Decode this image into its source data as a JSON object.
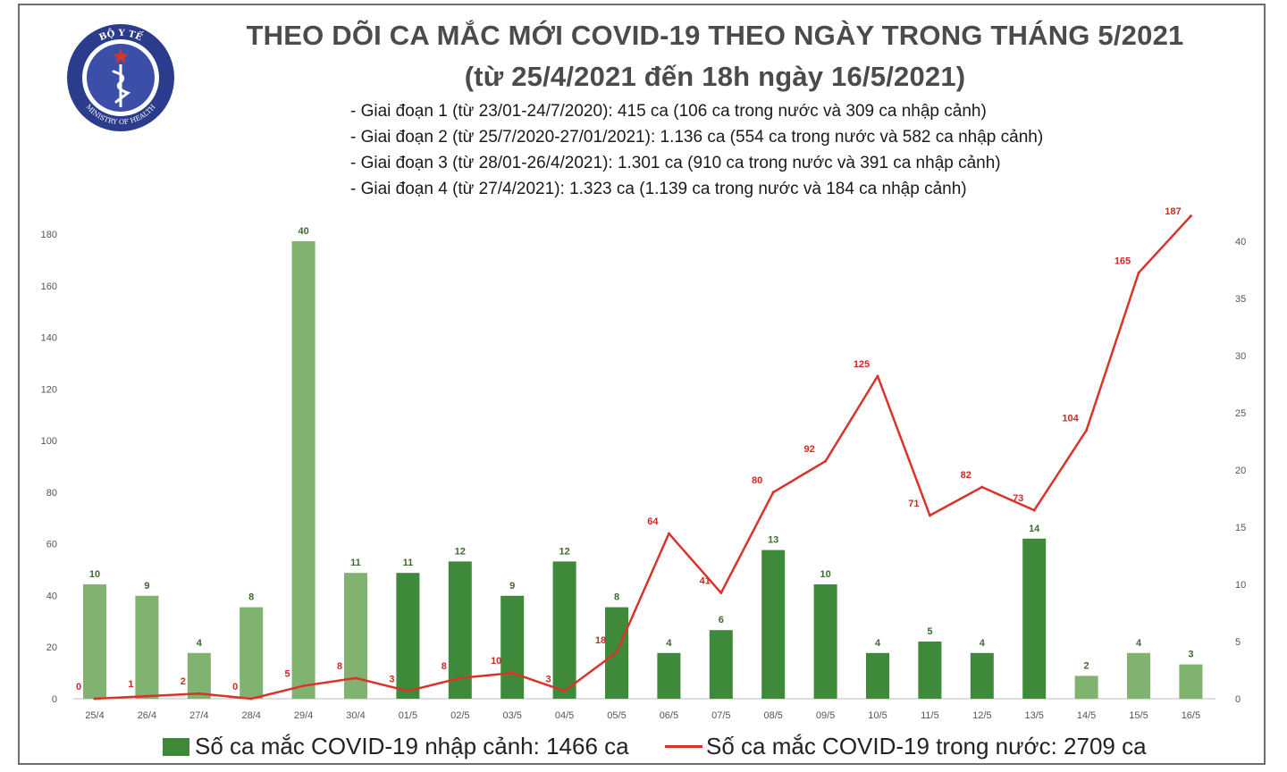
{
  "header": {
    "title": "THEO DÕI CA MẮC MỚI COVID-19 THEO NGÀY TRONG THÁNG 5/2021",
    "subtitle": "(từ 25/4/2021 đến 18h ngày 16/5/2021)",
    "phases": [
      "- Giai đoạn 1 (từ 23/01-24/7/2020): 415 ca (106 ca trong nước và 309 ca nhập cảnh)",
      "- Giai đoạn 2 (từ 25/7/2020-27/01/2021): 1.136 ca (554 ca trong nước và 582 ca nhập cảnh)",
      "- Giai đoạn 3 (từ 28/01-26/4/2021): 1.301 ca (910 ca trong nước và 391 ca nhập cảnh)",
      "- Giai đoạn 4 (từ 27/4/2021): 1.323 ca (1.139 ca trong nước và 184 ca nhập cảnh)"
    ]
  },
  "logo": {
    "text_top": "BỘ Y TẾ",
    "text_bottom": "MINISTRY OF HEALTH",
    "colors": {
      "outer": "#2c3c8c",
      "inner": "#ffffff",
      "star": "#d9342b"
    }
  },
  "legend": {
    "bar_label": "Số ca mắc COVID-19 nhập cảnh: 1466 ca",
    "line_label": "Số ca mắc COVID-19 trong nước: 2709 ca"
  },
  "colors": {
    "bar_light": "#7fb36f",
    "bar_dark": "#3f8a3a",
    "line": "#d9342b",
    "label_bar": "#3f6a30",
    "label_line": "#cc2a22",
    "axis_text": "#555555"
  },
  "chart_data": {
    "type": "bar+line",
    "categories": [
      "25/4",
      "26/4",
      "27/4",
      "28/4",
      "29/4",
      "30/4",
      "01/5",
      "02/5",
      "03/5",
      "04/5",
      "05/5",
      "06/5",
      "07/5",
      "08/5",
      "09/5",
      "10/5",
      "11/5",
      "12/5",
      "13/5",
      "14/5",
      "15/5",
      "16/5"
    ],
    "left_axis": {
      "ylim": [
        0,
        180
      ],
      "ticks": [
        0,
        20,
        40,
        60,
        80,
        100,
        120,
        140,
        160,
        180
      ]
    },
    "right_axis": {
      "ylim": [
        0,
        40
      ],
      "ticks": [
        0,
        5,
        10,
        15,
        20,
        25,
        30,
        35,
        40
      ]
    },
    "series": [
      {
        "name": "Số ca mắc COVID-19 nhập cảnh",
        "kind": "bar",
        "axis": "right",
        "values": [
          10,
          9,
          4,
          8,
          40,
          11,
          11,
          12,
          9,
          12,
          8,
          4,
          6,
          13,
          10,
          4,
          5,
          4,
          14,
          2,
          4,
          3
        ],
        "data_labels": [
          "10",
          "9",
          "4",
          "8",
          "40",
          "11",
          "11",
          "12",
          "9",
          "12",
          "8",
          "4",
          "6",
          "13",
          "10",
          "4",
          "5",
          "4",
          "14",
          "2",
          "4",
          "3"
        ]
      },
      {
        "name": "Số ca mắc COVID-19 trong nước",
        "kind": "line",
        "axis": "left",
        "values": [
          0,
          1,
          2,
          0,
          5,
          8,
          3,
          8,
          10,
          3,
          18,
          64,
          41,
          80,
          92,
          125,
          71,
          82,
          73,
          104,
          165,
          187
        ],
        "data_labels": [
          "0",
          "1",
          "2",
          "0",
          "5",
          "8",
          "3",
          "8",
          "10",
          "3",
          "18",
          "64",
          "41",
          "80",
          "92",
          "125",
          "71",
          "82",
          "73",
          "104",
          "165",
          "187"
        ]
      }
    ],
    "grid": false,
    "legend_position": "bottom"
  }
}
